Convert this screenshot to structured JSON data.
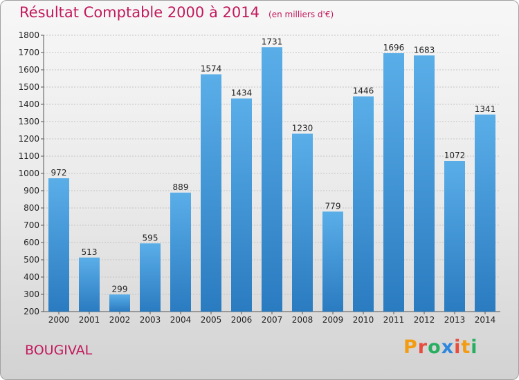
{
  "header": {
    "title": "Résultat Comptable 2000 à 2014",
    "subtitle": "(en milliers d'€)"
  },
  "footer": {
    "commune": "BOUGIVAL",
    "logo_text": "Proxiti"
  },
  "colors": {
    "accent": "#c2185b",
    "bar_top": "#5aaee8",
    "bar_bottom": "#2a7bc0",
    "logo_letters": [
      "#f39c12",
      "#e74c3c",
      "#27ae60",
      "#2e86de",
      "#e74c3c",
      "#f39c12",
      "#27ae60"
    ]
  },
  "chart_data": {
    "type": "bar",
    "title": "Résultat Comptable 2000 à 2014",
    "subtitle": "(en milliers d'€)",
    "xlabel": "",
    "ylabel": "",
    "categories": [
      "2000",
      "2001",
      "2002",
      "2003",
      "2004",
      "2005",
      "2006",
      "2007",
      "2008",
      "2009",
      "2010",
      "2011",
      "2012",
      "2013",
      "2014"
    ],
    "values": [
      972,
      513,
      299,
      595,
      889,
      1574,
      1434,
      1731,
      1230,
      779,
      1446,
      1696,
      1683,
      1072,
      1341
    ],
    "ylim": [
      200,
      1800
    ],
    "yticks": [
      200,
      300,
      400,
      500,
      600,
      700,
      800,
      900,
      1000,
      1100,
      1200,
      1300,
      1400,
      1500,
      1600,
      1700,
      1800
    ],
    "grid": true,
    "data_labels": true
  }
}
